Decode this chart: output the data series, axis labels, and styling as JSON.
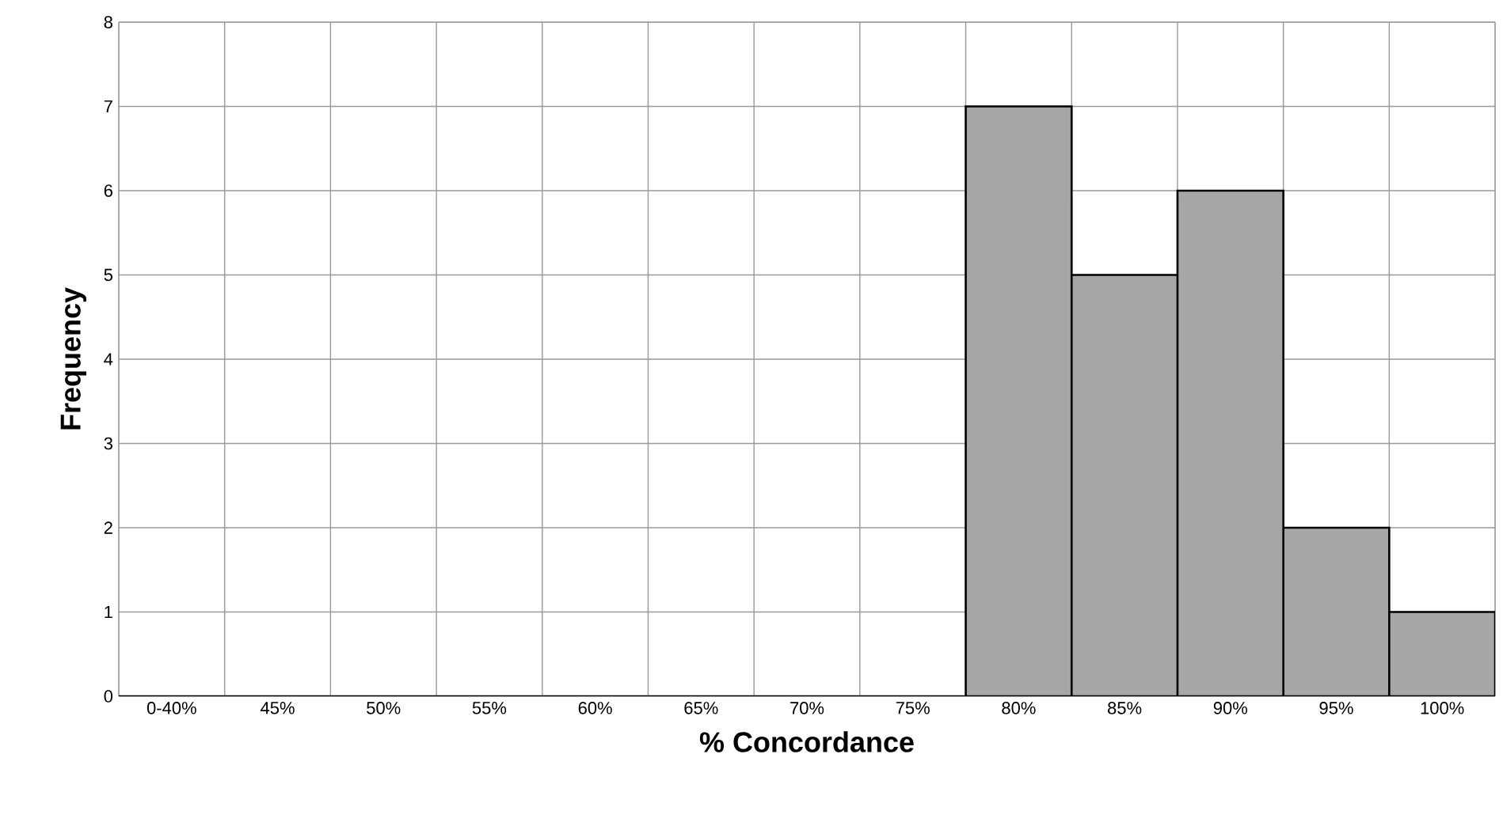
{
  "chart_data": {
    "type": "bar",
    "xlabel": "% Concordance",
    "ylabel": "Frequency",
    "categories": [
      "0-40%",
      "45%",
      "50%",
      "55%",
      "60%",
      "65%",
      "70%",
      "75%",
      "80%",
      "85%",
      "90%",
      "95%",
      "100%"
    ],
    "values": [
      0,
      0,
      0,
      0,
      0,
      0,
      0,
      0,
      7,
      5,
      6,
      2,
      1
    ],
    "color": "#a6a6a6",
    "ylim": [
      0,
      8
    ],
    "yticks": [
      0,
      1,
      2,
      3,
      4,
      5,
      6,
      7,
      8
    ],
    "grid": true
  }
}
